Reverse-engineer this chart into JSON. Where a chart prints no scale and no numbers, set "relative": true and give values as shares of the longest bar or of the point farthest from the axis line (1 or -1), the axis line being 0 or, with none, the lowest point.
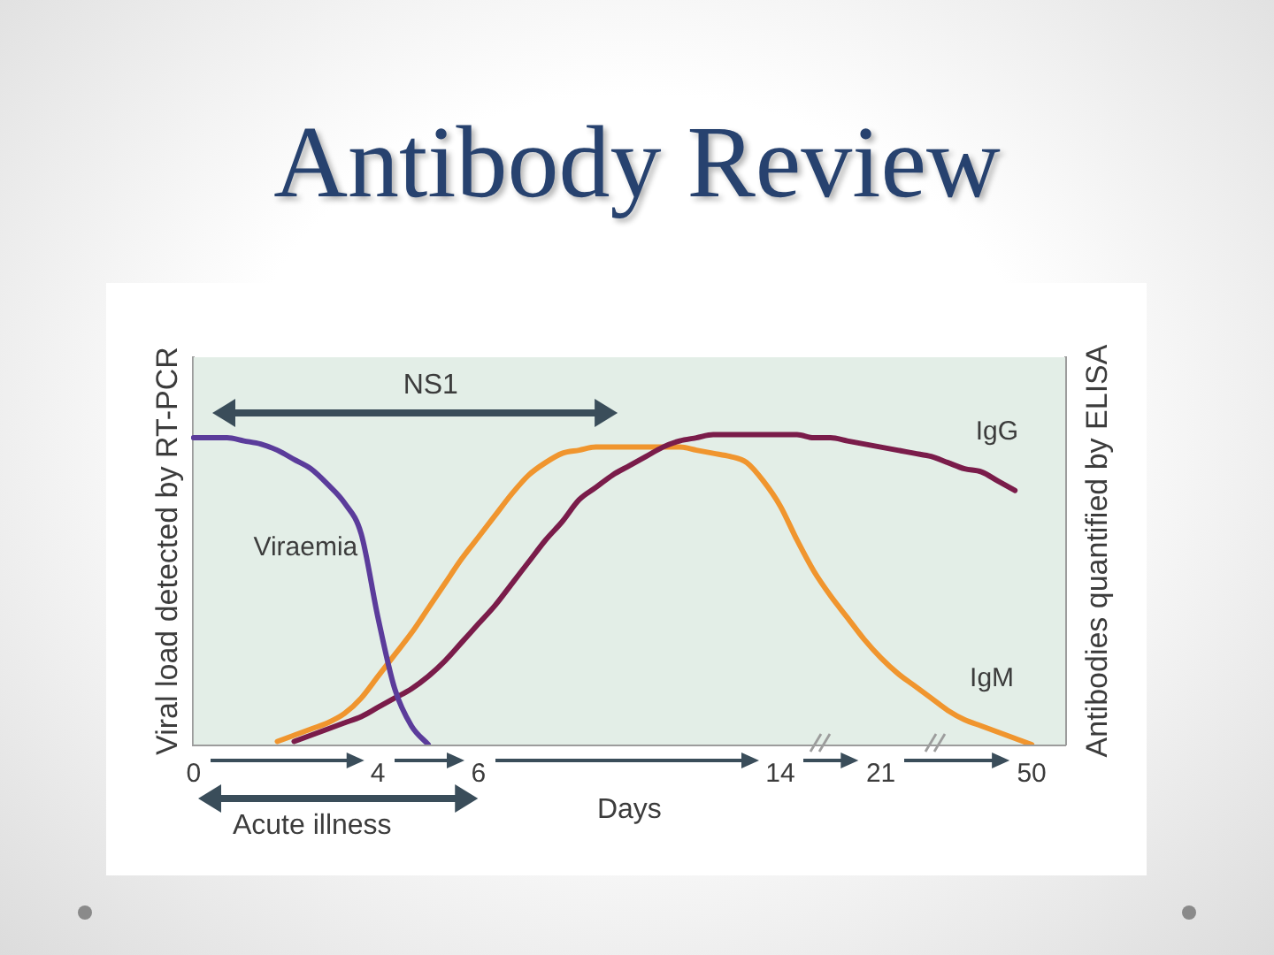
{
  "chart_data": {
    "type": "line",
    "title": "Antibody Review",
    "xlabel": "Days",
    "ylabel": "Viral load detected by RT-PCR",
    "y2label": "Antibodies quantified by ELISA",
    "relative": true,
    "categories": [
      "0",
      null,
      null,
      null,
      null,
      null,
      null,
      null,
      null,
      null,
      null,
      "4",
      null,
      null,
      null,
      null,
      null,
      "6",
      null,
      null,
      null,
      null,
      null,
      null,
      null,
      null,
      null,
      null,
      null,
      null,
      null,
      null,
      null,
      null,
      null,
      "14",
      null,
      null,
      null,
      null,
      null,
      "21",
      null,
      null,
      null,
      null,
      null,
      null,
      null,
      null,
      "50",
      null,
      null
    ],
    "series": [
      {
        "name": "Viraemia",
        "color": "#5b3c9b",
        "values": [
          0.99,
          0.99,
          0.99,
          0.98,
          0.97,
          0.95,
          0.92,
          0.89,
          0.84,
          0.78,
          0.68,
          0.41,
          0.18,
          0.06,
          0,
          null,
          null,
          null,
          null,
          null,
          null,
          null,
          null,
          null,
          null,
          null,
          null,
          null,
          null,
          null,
          null,
          null,
          null,
          null,
          null,
          null,
          null,
          null,
          null,
          null,
          null,
          null,
          null,
          null,
          null,
          null,
          null,
          null,
          null,
          null,
          null,
          null,
          null
        ]
      },
      {
        "name": "IgG",
        "color": "#7a1c4a",
        "values": [
          null,
          null,
          null,
          null,
          null,
          null,
          0.01,
          0.03,
          0.05,
          0.07,
          0.09,
          0.12,
          0.15,
          0.18,
          0.22,
          0.27,
          0.33,
          0.39,
          0.45,
          0.52,
          0.59,
          0.66,
          0.72,
          0.79,
          0.83,
          0.87,
          0.9,
          0.93,
          0.96,
          0.98,
          0.99,
          1,
          1,
          1,
          1,
          1,
          1,
          0.99,
          0.99,
          0.98,
          0.97,
          0.96,
          0.95,
          0.94,
          0.93,
          0.91,
          0.89,
          0.88,
          0.85,
          0.82,
          null,
          null,
          null
        ]
      },
      {
        "name": "IgM",
        "color": "#f0952e",
        "values": [
          null,
          null,
          null,
          null,
          null,
          0.01,
          0.03,
          0.05,
          0.07,
          0.1,
          0.15,
          0.22,
          0.29,
          0.36,
          0.44,
          0.52,
          0.6,
          0.67,
          0.74,
          0.81,
          0.87,
          0.91,
          0.94,
          0.95,
          0.96,
          0.96,
          0.96,
          0.96,
          0.96,
          0.96,
          0.95,
          0.94,
          0.93,
          0.91,
          0.85,
          0.77,
          0.66,
          0.56,
          0.48,
          0.41,
          0.34,
          0.28,
          0.23,
          0.19,
          0.15,
          0.11,
          0.08,
          0.06,
          0.04,
          0.02,
          0,
          null,
          null
        ]
      }
    ],
    "annotations": [
      "NS1",
      "Acute illness"
    ],
    "grid": false,
    "legend": false,
    "marker": "none",
    "line_style": "solid"
  }
}
